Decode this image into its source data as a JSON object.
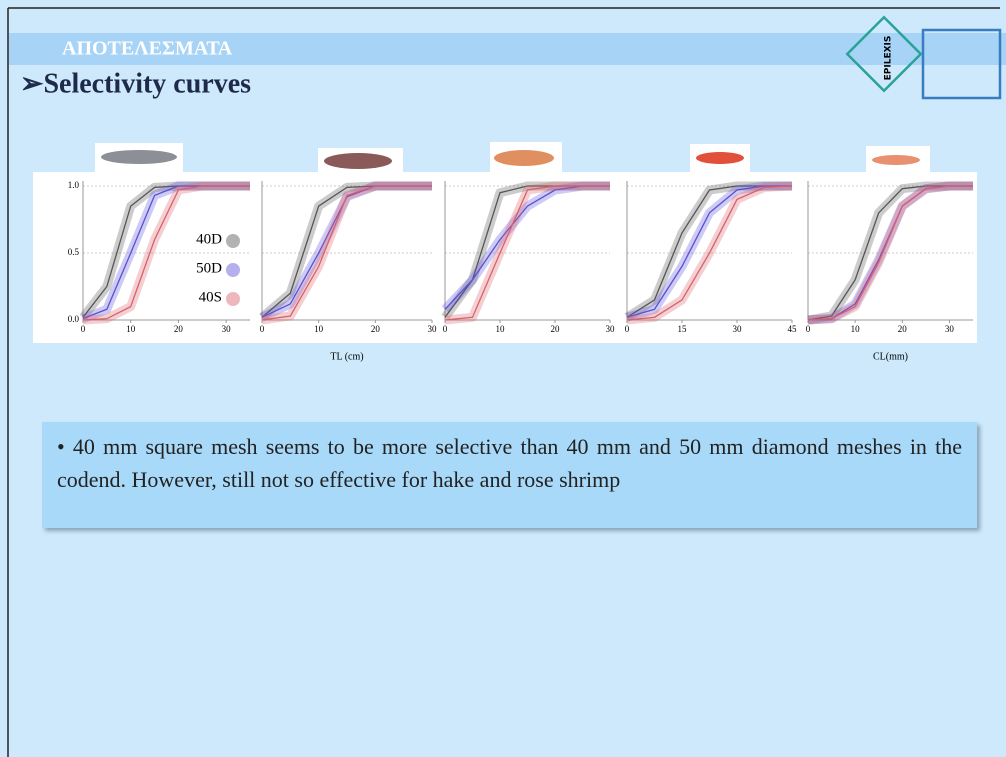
{
  "slide": {
    "header": "ΑΠΟΤΕΛΕΣΜΑΤΑ",
    "title": "➢Selectivity curves",
    "logo": "EPILEXIS",
    "note": "• 40 mm square mesh seems to be more selective than 40 mm and 50 mm diamond meshes in the codend. However, still not so effective for hake and rose shrimp"
  },
  "chart_data": [
    {
      "type": "line",
      "x": [
        0,
        5,
        10,
        15,
        20,
        25,
        30,
        35
      ],
      "xlim": [
        0,
        35
      ],
      "xticks": [
        0,
        10,
        20,
        30
      ],
      "ylim": [
        0,
        1
      ],
      "yticks": [
        {
          "value": 0,
          "label": "0.0"
        },
        {
          "value": 0.5,
          "label": "0.5"
        },
        {
          "value": 1,
          "label": "1.0"
        }
      ],
      "grid": true,
      "legend": "right",
      "series": [
        {
          "name": "40D",
          "color": "#555555",
          "values": [
            0.02,
            0.25,
            0.85,
            0.99,
            1,
            1,
            1,
            1
          ]
        },
        {
          "name": "50D",
          "color": "#5b4fd6",
          "values": [
            0.01,
            0.08,
            0.5,
            0.93,
            1,
            1,
            1,
            1
          ]
        },
        {
          "name": "40S",
          "color": "#d9606a",
          "values": [
            0,
            0.01,
            0.1,
            0.6,
            0.97,
            1,
            1,
            1
          ]
        }
      ]
    },
    {
      "type": "line",
      "x": [
        0,
        5,
        10,
        15,
        20,
        25,
        30
      ],
      "xlim": [
        0,
        30
      ],
      "xticks": [
        0,
        10,
        20,
        30
      ],
      "ylim": [
        0,
        1
      ],
      "xlabel": "TL (cm)",
      "series": [
        {
          "color": "#555555",
          "values": [
            0.02,
            0.2,
            0.85,
            0.99,
            1,
            1,
            1
          ]
        },
        {
          "color": "#5b4fd6",
          "values": [
            0.02,
            0.12,
            0.5,
            0.92,
            1,
            1,
            1
          ]
        },
        {
          "color": "#d9606a",
          "values": [
            0,
            0.03,
            0.4,
            0.93,
            1,
            1,
            1
          ]
        }
      ]
    },
    {
      "type": "line",
      "x": [
        0,
        5,
        10,
        15,
        20,
        25,
        30
      ],
      "xlim": [
        0,
        30
      ],
      "xticks": [
        0,
        10,
        20,
        30
      ],
      "ylim": [
        0,
        1
      ],
      "series": [
        {
          "color": "#555555",
          "values": [
            0.02,
            0.3,
            0.95,
            1,
            1,
            1,
            1
          ]
        },
        {
          "color": "#5b4fd6",
          "values": [
            0.08,
            0.3,
            0.6,
            0.85,
            0.97,
            1,
            1
          ]
        },
        {
          "color": "#d9606a",
          "values": [
            0,
            0.02,
            0.5,
            0.97,
            1,
            1,
            1
          ]
        }
      ]
    },
    {
      "type": "line",
      "x": [
        0,
        7.5,
        15,
        22.5,
        30,
        37.5,
        45
      ],
      "xlim": [
        0,
        45
      ],
      "xticks": [
        0,
        15,
        30,
        45
      ],
      "ylim": [
        0,
        1
      ],
      "series": [
        {
          "color": "#555555",
          "values": [
            0.02,
            0.15,
            0.65,
            0.97,
            1,
            1,
            1
          ]
        },
        {
          "color": "#5b4fd6",
          "values": [
            0.02,
            0.08,
            0.4,
            0.8,
            0.97,
            1,
            1
          ]
        },
        {
          "color": "#d9606a",
          "values": [
            0,
            0.02,
            0.15,
            0.5,
            0.9,
            0.99,
            1
          ]
        }
      ]
    },
    {
      "type": "line",
      "x": [
        0,
        5,
        10,
        15,
        20,
        25,
        30,
        35
      ],
      "xlim": [
        0,
        35
      ],
      "xticks": [
        0,
        10,
        20,
        30
      ],
      "ylim": [
        0,
        1
      ],
      "xlabel": "CL(mm)",
      "series": [
        {
          "color": "#555555",
          "values": [
            0,
            0.03,
            0.3,
            0.8,
            0.98,
            1,
            1,
            1
          ]
        },
        {
          "color": "#5b4fd6",
          "values": [
            0,
            0.01,
            0.12,
            0.45,
            0.85,
            0.98,
            1,
            1
          ]
        },
        {
          "color": "#d9606a",
          "values": [
            0,
            0.01,
            0.1,
            0.43,
            0.85,
            0.98,
            1,
            1
          ]
        }
      ]
    }
  ]
}
